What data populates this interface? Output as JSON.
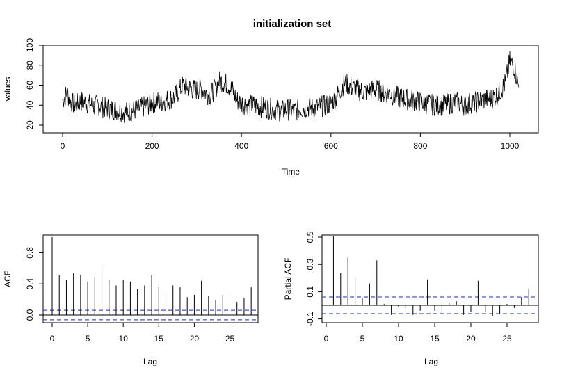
{
  "chart_data": [
    {
      "type": "line",
      "title": "initialization set",
      "xlabel": "Time",
      "ylabel": "values",
      "xlim": [
        0,
        1030
      ],
      "ylim": [
        20,
        100
      ],
      "xticks": [
        0,
        200,
        400,
        600,
        800,
        1000
      ],
      "yticks": [
        20,
        40,
        60,
        80,
        100
      ],
      "series": [
        {
          "x": [
            0,
            10,
            20,
            30,
            40,
            50,
            60,
            70,
            80,
            90,
            100,
            110,
            120,
            130,
            140,
            150,
            160,
            170,
            180,
            190,
            200,
            210,
            220,
            230,
            240,
            250,
            260,
            270,
            280,
            290,
            300,
            310,
            320,
            330,
            340,
            350,
            360,
            370,
            380,
            390,
            400,
            410,
            420,
            430,
            440,
            450,
            460,
            470,
            480,
            490,
            500,
            510,
            520,
            530,
            540,
            550,
            560,
            570,
            580,
            590,
            600,
            610,
            620,
            630,
            640,
            650,
            660,
            670,
            680,
            690,
            700,
            710,
            720,
            730,
            740,
            750,
            760,
            770,
            780,
            790,
            800,
            810,
            820,
            830,
            840,
            850,
            860,
            870,
            880,
            890,
            900,
            910,
            920,
            930,
            940,
            950,
            960,
            970,
            980,
            990,
            1000,
            1010,
            1020
          ],
          "y": [
            45,
            52,
            42,
            40,
            44,
            43,
            41,
            39,
            40,
            38,
            37,
            36,
            35,
            34,
            33,
            34,
            35,
            36,
            38,
            40,
            42,
            44,
            43,
            45,
            46,
            48,
            54,
            60,
            58,
            56,
            55,
            57,
            52,
            50,
            56,
            64,
            63,
            60,
            55,
            45,
            42,
            41,
            40,
            40,
            39,
            38,
            37,
            36,
            35,
            34,
            36,
            35,
            34,
            36,
            37,
            38,
            37,
            38,
            39,
            40,
            42,
            46,
            55,
            62,
            60,
            57,
            55,
            54,
            53,
            55,
            56,
            54,
            52,
            52,
            50,
            48,
            47,
            46,
            45,
            44,
            43,
            42,
            41,
            40,
            40,
            40,
            41,
            42,
            43,
            41,
            40,
            42,
            43,
            44,
            45,
            46,
            47,
            50,
            55,
            62,
            84,
            78,
            58
          ]
        }
      ],
      "grid": false
    },
    {
      "type": "bar",
      "title": "",
      "xlabel": "Lag",
      "ylabel": "ACF",
      "xlim": [
        0,
        28
      ],
      "ylim": [
        -0.07,
        1.0
      ],
      "xticks": [
        0,
        5,
        10,
        15,
        20,
        25
      ],
      "yticks": [
        0.0,
        0.4,
        0.8
      ],
      "lags": [
        0,
        1,
        2,
        3,
        4,
        5,
        6,
        7,
        8,
        9,
        10,
        11,
        12,
        13,
        14,
        15,
        16,
        17,
        18,
        19,
        20,
        21,
        22,
        23,
        24,
        25,
        26,
        27,
        28
      ],
      "values": [
        1.0,
        0.51,
        0.45,
        0.54,
        0.51,
        0.43,
        0.48,
        0.62,
        0.45,
        0.38,
        0.45,
        0.43,
        0.33,
        0.38,
        0.51,
        0.36,
        0.28,
        0.38,
        0.36,
        0.23,
        0.26,
        0.44,
        0.25,
        0.19,
        0.26,
        0.26,
        0.17,
        0.22,
        0.36
      ],
      "confidence_bound": 0.061,
      "grid": false
    },
    {
      "type": "bar",
      "title": "",
      "xlabel": "Lag",
      "ylabel": "Partial ACF",
      "xlim": [
        0,
        28
      ],
      "ylim": [
        -0.13,
        0.55
      ],
      "xticks": [
        0,
        5,
        10,
        15,
        20,
        25
      ],
      "yticks": [
        -0.1,
        0.1,
        0.3,
        0.5
      ],
      "lags": [
        1,
        2,
        3,
        4,
        5,
        6,
        7,
        8,
        9,
        10,
        11,
        12,
        13,
        14,
        15,
        16,
        17,
        18,
        19,
        20,
        21,
        22,
        23,
        24,
        25,
        26,
        27,
        28
      ],
      "values": [
        0.51,
        0.24,
        0.35,
        0.2,
        0.05,
        0.16,
        0.33,
        0.01,
        -0.07,
        -0.01,
        -0.02,
        -0.07,
        -0.04,
        0.19,
        -0.04,
        -0.06,
        0.02,
        0.03,
        -0.07,
        -0.05,
        0.18,
        -0.05,
        -0.08,
        -0.06,
        0.01,
        -0.02,
        0.06,
        0.12
      ],
      "confidence_bound": 0.061,
      "grid": false
    }
  ]
}
